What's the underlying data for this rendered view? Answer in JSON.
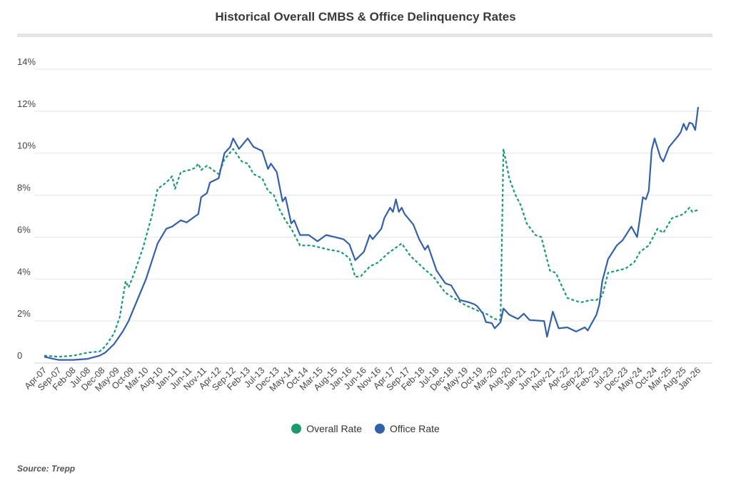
{
  "chart_data": {
    "type": "line",
    "title": "Historical Overall CMBS & Office Delinquency Rates",
    "source": "Source: Trepp",
    "ylim": [
      0,
      14
    ],
    "y_ticks": [
      "0",
      "2%",
      "4%",
      "6%",
      "8%",
      "10%",
      "12%",
      "14%"
    ],
    "y_tick_values": [
      0,
      2,
      4,
      6,
      8,
      10,
      12,
      14
    ],
    "x_ticks": [
      "Apr-07",
      "Sep-07",
      "Feb-08",
      "Jul-08",
      "Dec-08",
      "May-09",
      "Oct-09",
      "Mar-10",
      "Aug-10",
      "Jan-11",
      "Jun-11",
      "Nov-11",
      "Apr-12",
      "Sep-12",
      "Feb-13",
      "Jul-13",
      "Dec-13",
      "May-14",
      "Oct-14",
      "Mar-15",
      "Aug-15",
      "Jan-16",
      "Jun-16",
      "Nov-16",
      "Apr-17",
      "Sep-17",
      "Feb-18",
      "Jul-18",
      "Dec-18",
      "May-19",
      "Oct-19",
      "Mar-20",
      "Aug-20",
      "Jan-21",
      "Jun-21",
      "Nov-21",
      "Apr-22",
      "Sep-22",
      "Feb-23",
      "Jul-23",
      "Dec-23",
      "May-24",
      "Oct-24",
      "Mar-25",
      "Aug-25",
      "Jan-26"
    ],
    "grid": true,
    "legend_position": "bottom",
    "series": [
      {
        "name": "Overall Rate",
        "color": "#1b9a6c",
        "style": "dashed",
        "points": [
          [
            "2007-04",
            0.35
          ],
          [
            "2007-09",
            0.3
          ],
          [
            "2008-02",
            0.35
          ],
          [
            "2008-07",
            0.5
          ],
          [
            "2008-11",
            0.55
          ],
          [
            "2009-01",
            0.8
          ],
          [
            "2009-04",
            1.4
          ],
          [
            "2009-06",
            2.2
          ],
          [
            "2009-08",
            3.9
          ],
          [
            "2009-09",
            3.6
          ],
          [
            "2009-11",
            4.3
          ],
          [
            "2010-02",
            5.5
          ],
          [
            "2010-05",
            7.0
          ],
          [
            "2010-07",
            8.3
          ],
          [
            "2010-10",
            8.6
          ],
          [
            "2010-12",
            8.9
          ],
          [
            "2011-01",
            8.3
          ],
          [
            "2011-03",
            9.1
          ],
          [
            "2011-06",
            9.2
          ],
          [
            "2011-08",
            9.3
          ],
          [
            "2011-09",
            9.5
          ],
          [
            "2011-10",
            9.2
          ],
          [
            "2011-12",
            9.4
          ],
          [
            "2012-04",
            9.0
          ],
          [
            "2012-06",
            9.7
          ],
          [
            "2012-09",
            10.2
          ],
          [
            "2012-12",
            9.6
          ],
          [
            "2013-02",
            9.5
          ],
          [
            "2013-04",
            9.0
          ],
          [
            "2013-07",
            8.8
          ],
          [
            "2013-09",
            8.2
          ],
          [
            "2013-11",
            8.0
          ],
          [
            "2014-01",
            7.3
          ],
          [
            "2014-03",
            6.8
          ],
          [
            "2014-05",
            6.4
          ],
          [
            "2014-08",
            5.6
          ],
          [
            "2014-12",
            5.6
          ],
          [
            "2015-03",
            5.5
          ],
          [
            "2015-06",
            5.4
          ],
          [
            "2015-10",
            5.3
          ],
          [
            "2016-01",
            5.0
          ],
          [
            "2016-03",
            4.1
          ],
          [
            "2016-05",
            4.15
          ],
          [
            "2016-08",
            4.6
          ],
          [
            "2016-11",
            4.8
          ],
          [
            "2017-02",
            5.2
          ],
          [
            "2017-06",
            5.6
          ],
          [
            "2017-07",
            5.7
          ],
          [
            "2017-10",
            5.1
          ],
          [
            "2018-03",
            4.45
          ],
          [
            "2018-06",
            4.1
          ],
          [
            "2018-10",
            3.35
          ],
          [
            "2019-05",
            2.75
          ],
          [
            "2019-09",
            2.5
          ],
          [
            "2019-12",
            2.35
          ],
          [
            "2020-03",
            2.1
          ],
          [
            "2020-05",
            2.05
          ],
          [
            "2020-06",
            10.2
          ],
          [
            "2020-08",
            8.8
          ],
          [
            "2020-10",
            8.05
          ],
          [
            "2020-12",
            7.5
          ],
          [
            "2021-02",
            6.65
          ],
          [
            "2021-05",
            6.1
          ],
          [
            "2021-07",
            6.0
          ],
          [
            "2021-10",
            4.4
          ],
          [
            "2021-12",
            4.3
          ],
          [
            "2022-04",
            3.1
          ],
          [
            "2022-07",
            2.95
          ],
          [
            "2022-09",
            2.9
          ],
          [
            "2022-12",
            3.0
          ],
          [
            "2023-02",
            3.0
          ],
          [
            "2023-04",
            3.2
          ],
          [
            "2023-06",
            4.3
          ],
          [
            "2023-09",
            4.4
          ],
          [
            "2023-12",
            4.5
          ],
          [
            "2024-03",
            4.8
          ],
          [
            "2024-05",
            5.3
          ],
          [
            "2024-08",
            5.6
          ],
          [
            "2024-11",
            6.4
          ],
          [
            "2025-01",
            6.2
          ],
          [
            "2025-04",
            6.9
          ],
          [
            "2025-08",
            7.1
          ],
          [
            "2025-10",
            7.4
          ],
          [
            "2025-11",
            7.2
          ],
          [
            "2026-01",
            7.3
          ]
        ]
      },
      {
        "name": "Office Rate",
        "color": "#3360a9",
        "style": "solid",
        "points": [
          [
            "2007-04",
            0.3
          ],
          [
            "2007-07",
            0.2
          ],
          [
            "2007-09",
            0.15
          ],
          [
            "2008-02",
            0.15
          ],
          [
            "2008-07",
            0.2
          ],
          [
            "2008-11",
            0.35
          ],
          [
            "2009-01",
            0.5
          ],
          [
            "2009-04",
            0.9
          ],
          [
            "2009-07",
            1.5
          ],
          [
            "2009-09",
            2.0
          ],
          [
            "2009-12",
            3.0
          ],
          [
            "2010-03",
            4.0
          ],
          [
            "2010-07",
            5.7
          ],
          [
            "2010-10",
            6.4
          ],
          [
            "2010-12",
            6.5
          ],
          [
            "2011-03",
            6.8
          ],
          [
            "2011-05",
            6.7
          ],
          [
            "2011-08",
            7.0
          ],
          [
            "2011-09",
            7.1
          ],
          [
            "2011-10",
            7.9
          ],
          [
            "2011-12",
            8.1
          ],
          [
            "2012-01",
            8.6
          ],
          [
            "2012-04",
            8.8
          ],
          [
            "2012-06",
            10.0
          ],
          [
            "2012-08",
            10.3
          ],
          [
            "2012-09",
            10.7
          ],
          [
            "2012-11",
            10.2
          ],
          [
            "2013-02",
            10.7
          ],
          [
            "2013-04",
            10.3
          ],
          [
            "2013-07",
            10.1
          ],
          [
            "2013-09",
            9.25
          ],
          [
            "2013-10",
            9.5
          ],
          [
            "2013-12",
            9.1
          ],
          [
            "2014-02",
            7.7
          ],
          [
            "2014-03",
            7.9
          ],
          [
            "2014-05",
            6.65
          ],
          [
            "2014-06",
            6.8
          ],
          [
            "2014-08",
            6.1
          ],
          [
            "2014-11",
            6.1
          ],
          [
            "2015-02",
            5.8
          ],
          [
            "2015-05",
            6.1
          ],
          [
            "2015-08",
            6.0
          ],
          [
            "2015-11",
            5.9
          ],
          [
            "2016-01",
            5.65
          ],
          [
            "2016-03",
            4.9
          ],
          [
            "2016-06",
            5.3
          ],
          [
            "2016-08",
            6.1
          ],
          [
            "2016-09",
            5.9
          ],
          [
            "2016-12",
            6.4
          ],
          [
            "2017-01",
            6.9
          ],
          [
            "2017-03",
            7.4
          ],
          [
            "2017-04",
            7.2
          ],
          [
            "2017-05",
            7.8
          ],
          [
            "2017-06",
            7.2
          ],
          [
            "2017-07",
            7.4
          ],
          [
            "2017-08",
            7.1
          ],
          [
            "2017-11",
            6.6
          ],
          [
            "2018-01",
            5.9
          ],
          [
            "2018-03",
            5.4
          ],
          [
            "2018-04",
            5.6
          ],
          [
            "2018-07",
            4.4
          ],
          [
            "2018-10",
            3.8
          ],
          [
            "2018-12",
            3.7
          ],
          [
            "2019-03",
            3.0
          ],
          [
            "2019-06",
            2.9
          ],
          [
            "2019-08",
            2.8
          ],
          [
            "2019-09",
            2.7
          ],
          [
            "2019-11",
            2.35
          ],
          [
            "2019-12",
            1.95
          ],
          [
            "2020-02",
            1.9
          ],
          [
            "2020-03",
            1.65
          ],
          [
            "2020-05",
            1.95
          ],
          [
            "2020-06",
            2.6
          ],
          [
            "2020-08",
            2.3
          ],
          [
            "2020-11",
            2.1
          ],
          [
            "2021-01",
            2.35
          ],
          [
            "2021-03",
            2.05
          ],
          [
            "2021-08",
            2.0
          ],
          [
            "2021-09",
            1.25
          ],
          [
            "2021-11",
            2.45
          ],
          [
            "2022-01",
            1.65
          ],
          [
            "2022-04",
            1.7
          ],
          [
            "2022-07",
            1.5
          ],
          [
            "2022-10",
            1.7
          ],
          [
            "2022-11",
            1.55
          ],
          [
            "2023-02",
            2.3
          ],
          [
            "2023-03",
            2.8
          ],
          [
            "2023-04",
            3.9
          ],
          [
            "2023-06",
            4.95
          ],
          [
            "2023-09",
            5.6
          ],
          [
            "2023-11",
            5.85
          ],
          [
            "2024-02",
            6.5
          ],
          [
            "2024-04",
            6.0
          ],
          [
            "2024-06",
            7.9
          ],
          [
            "2024-07",
            7.8
          ],
          [
            "2024-08",
            8.2
          ],
          [
            "2024-09",
            10.15
          ],
          [
            "2024-10",
            10.7
          ],
          [
            "2024-12",
            9.8
          ],
          [
            "2025-01",
            9.6
          ],
          [
            "2025-03",
            10.3
          ],
          [
            "2025-06",
            10.8
          ],
          [
            "2025-07",
            11.0
          ],
          [
            "2025-08",
            11.4
          ],
          [
            "2025-09",
            11.1
          ],
          [
            "2025-10",
            11.45
          ],
          [
            "2025-11",
            11.4
          ],
          [
            "2025-12",
            11.1
          ],
          [
            "2026-01",
            12.2
          ]
        ]
      }
    ]
  }
}
